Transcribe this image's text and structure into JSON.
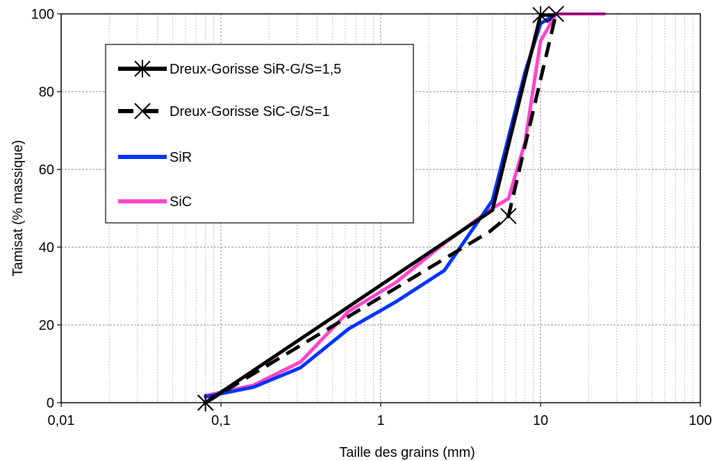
{
  "chart_data": {
    "type": "line",
    "title": "",
    "xlabel": "Taille des grains (mm)",
    "ylabel": "Tamisat (% massique)",
    "xscale": "log",
    "xlim": [
      0.01,
      100
    ],
    "ylim": [
      0,
      100
    ],
    "xticks": [
      {
        "value": 0.01,
        "label": "0,01"
      },
      {
        "value": 0.1,
        "label": "0,1"
      },
      {
        "value": 1,
        "label": "1"
      },
      {
        "value": 10,
        "label": "10"
      },
      {
        "value": 100,
        "label": "100"
      }
    ],
    "yticks": [
      {
        "value": 0,
        "label": "0"
      },
      {
        "value": 20,
        "label": "20"
      },
      {
        "value": 40,
        "label": "40"
      },
      {
        "value": 60,
        "label": "60"
      },
      {
        "value": 80,
        "label": "80"
      },
      {
        "value": 100,
        "label": "100"
      }
    ],
    "grid": "vertical-minor-and-major, horizontal-major",
    "legend_position": "top-left",
    "series": [
      {
        "name": "Dreux-Gorisse SiR-G/S=1,5",
        "color": "#000000",
        "dash": "solid",
        "marker": "asterisk",
        "x": [
          0.08,
          5,
          10,
          12
        ],
        "y": [
          0,
          49.5,
          99.7,
          99.7
        ],
        "marker_points": [
          [
            0.08,
            0
          ],
          [
            10,
            99.7
          ]
        ]
      },
      {
        "name": "Dreux-Gorisse SiC-G/S=1",
        "color": "#000000",
        "dash": "dashed",
        "marker": "x",
        "x": [
          0.08,
          4.8,
          6.3,
          12.5
        ],
        "y": [
          0,
          44,
          48,
          100
        ],
        "marker_points": [
          [
            0.08,
            0
          ],
          [
            6.3,
            48
          ],
          [
            12.5,
            100
          ]
        ]
      },
      {
        "name": "SiR",
        "color": "#0033ff",
        "dash": "solid",
        "marker": "none",
        "x": [
          0.08,
          0.16,
          0.315,
          0.63,
          1.25,
          2.5,
          5,
          8,
          10,
          12.5
        ],
        "y": [
          1.5,
          4,
          9,
          19,
          26,
          34,
          52,
          85,
          97.5,
          100
        ]
      },
      {
        "name": "SiC",
        "color": "#ff44cc",
        "dash": "solid",
        "marker": "none",
        "x": [
          0.08,
          0.16,
          0.315,
          0.63,
          1.25,
          2.5,
          5,
          6.3,
          8,
          10,
          12.5,
          16,
          25
        ],
        "y": [
          1.8,
          4.5,
          10.5,
          23.5,
          31,
          41,
          50,
          52.5,
          67,
          93,
          100,
          100,
          100
        ]
      }
    ]
  }
}
